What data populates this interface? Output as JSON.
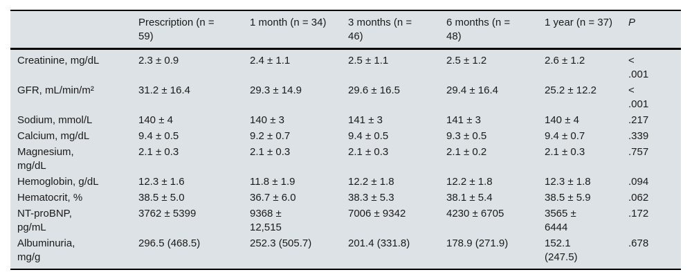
{
  "table": {
    "background_color": "#dce2e5",
    "rule_color": "#000000",
    "columns": [
      {
        "label": ""
      },
      {
        "label": "Prescription (n =\n59)"
      },
      {
        "label": "1 month (n = 34)"
      },
      {
        "label": "3 months (n =\n46)"
      },
      {
        "label": "6 months (n =\n48)"
      },
      {
        "label": "1 year (n = 37)"
      },
      {
        "label": "P"
      }
    ],
    "rows": [
      {
        "label": "Creatinine, mg/dL",
        "values": [
          "2.3 ± 0.9",
          "2.4 ± 1.1",
          "2.5 ± 1.1",
          "2.5 ± 1.2",
          "2.6 ± 1.2"
        ],
        "p": "<\n.001"
      },
      {
        "label": "GFR, mL/min/m²",
        "values": [
          "31.2 ± 16.4",
          "29.3 ± 14.9",
          "29.6 ± 16.5",
          "29.4 ± 16.4",
          "25.2 ± 12.2"
        ],
        "p": "<\n.001"
      },
      {
        "label": "Sodium, mmol/L",
        "values": [
          "140 ± 4",
          "140 ± 3",
          "141 ± 3",
          "141 ± 3",
          "140 ± 4"
        ],
        "p": ".217"
      },
      {
        "label": "Calcium, mg/dL",
        "values": [
          "9.4 ± 0.5",
          "9.2 ± 0.7",
          "9.4 ± 0.5",
          "9.3 ± 0.5",
          "9.4 ± 0.7"
        ],
        "p": ".339"
      },
      {
        "label": "Magnesium,\nmg/dL",
        "values": [
          "2.1 ± 0.3",
          "2.1 ± 0.3",
          "2.1 ± 0.3",
          "2.1 ± 0.2",
          "2.1 ± 0.3"
        ],
        "p": ".757"
      },
      {
        "label": "Hemoglobin, g/dL",
        "values": [
          "12.3 ± 1.6",
          "11.8 ± 1.9",
          "12.2 ± 1.8",
          "12.2 ± 1.8",
          "12.3 ± 1.8"
        ],
        "p": ".094"
      },
      {
        "label": "Hematocrit, %",
        "values": [
          "38.5 ± 5.0",
          "36.7 ± 6.0",
          "38.3 ± 5.3",
          "38.1 ± 5.4",
          "38.5 ± 5.9"
        ],
        "p": ".062"
      },
      {
        "label": "NT-proBNP,\npg/mL",
        "values": [
          "3762 ± 5399",
          "9368 ±\n12,515",
          "7006 ± 9342",
          "4230 ± 6705",
          "3565 ±\n6444"
        ],
        "p": ".172"
      },
      {
        "label": "Albuminuria,\nmg/g",
        "values": [
          "296.5 (468.5)",
          "252.3 (505.7)",
          "201.4 (331.8)",
          "178.9 (271.9)",
          "152.1\n(247.5)"
        ],
        "p": ".678"
      }
    ]
  }
}
